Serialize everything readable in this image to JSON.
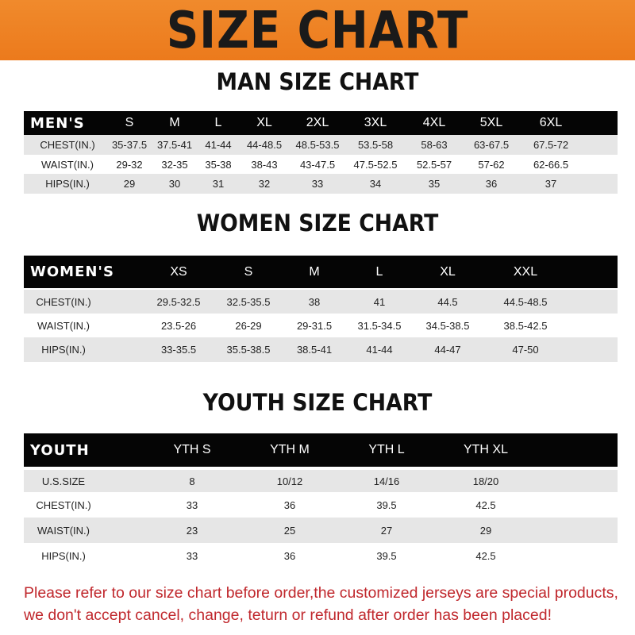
{
  "banner": {
    "title": "SIZE CHART",
    "color": "#ee8226"
  },
  "men": {
    "title": "MAN SIZE CHART",
    "header": [
      "MEN'S",
      "S",
      "M",
      "L",
      "XL",
      "2XL",
      "3XL",
      "4XL",
      "5XL",
      "6XL"
    ],
    "rows": [
      [
        "CHEST(IN.)",
        "35-37.5",
        "37.5-41",
        "41-44",
        "44-48.5",
        "48.5-53.5",
        "53.5-58",
        "58-63",
        "63-67.5",
        "67.5-72"
      ],
      [
        "WAIST(IN.)",
        "29-32",
        "32-35",
        "35-38",
        "38-43",
        "43-47.5",
        "47.5-52.5",
        "52.5-57",
        "57-62",
        "62-66.5"
      ],
      [
        "HIPS(IN.)",
        "29",
        "30",
        "31",
        "32",
        "33",
        "34",
        "35",
        "36",
        "37"
      ]
    ]
  },
  "women": {
    "title": "WOMEN SIZE CHART",
    "header": [
      "WOMEN'S",
      "XS",
      "S",
      "M",
      "L",
      "XL",
      "XXL"
    ],
    "rows": [
      [
        "CHEST(IN.)",
        "29.5-32.5",
        "32.5-35.5",
        "38",
        "41",
        "44.5",
        "44.5-48.5"
      ],
      [
        "WAIST(IN.)",
        "23.5-26",
        "26-29",
        "29-31.5",
        "31.5-34.5",
        "34.5-38.5",
        "38.5-42.5"
      ],
      [
        "HIPS(IN.)",
        "33-35.5",
        "35.5-38.5",
        "38.5-41",
        "41-44",
        "44-47",
        "47-50"
      ]
    ]
  },
  "youth": {
    "title": "YOUTH SIZE CHART",
    "header": [
      "YOUTH",
      "YTH S",
      "YTH M",
      "YTH L",
      "YTH XL"
    ],
    "rows": [
      [
        "U.S.SIZE",
        "8",
        "10/12",
        "14/16",
        "18/20"
      ],
      [
        "CHEST(IN.)",
        "33",
        "36",
        "39.5",
        "42.5"
      ],
      [
        "WAIST(IN.)",
        "23",
        "25",
        "27",
        "29"
      ],
      [
        "HIPS(IN.)",
        "33",
        "36",
        "39.5",
        "42.5"
      ]
    ]
  },
  "note": {
    "line1": "Please refer to our size chart before order,the customized jerseys are special products,",
    "line2": "we don't accept cancel, change, teturn or refund after order has been placed!",
    "color": "#c0282d"
  }
}
